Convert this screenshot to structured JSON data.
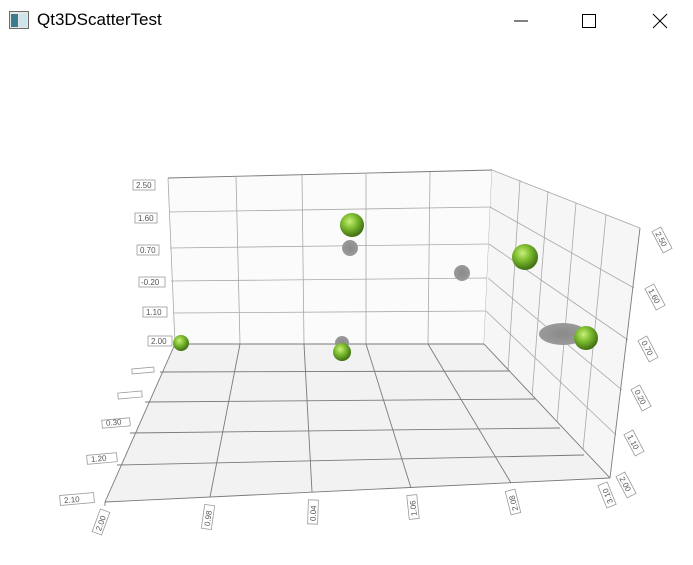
{
  "window": {
    "title": "Qt3DScatterTest",
    "icon": "app-window-icon",
    "controls": [
      "minimize-icon",
      "maximize-icon",
      "close-icon"
    ]
  },
  "chart_data": {
    "type": "scatter",
    "y_axis_labels": [
      "2.50",
      "1.60",
      "0.70",
      "-0.20",
      "1.10",
      "2.00"
    ],
    "y_axis_labels_right": [
      "2.50",
      "1.60",
      "0.70",
      "0.20",
      "1.10",
      "2.00"
    ],
    "x_axis_labels": [
      "2.00",
      "0.98",
      "0.04",
      "1.06",
      "2.08",
      "3.10"
    ],
    "z_axis_labels": [
      "2.10",
      "1.20",
      "0.30",
      "",
      ""
    ],
    "point_color": "#6aa82a",
    "shadow_color": "#888888"
  }
}
